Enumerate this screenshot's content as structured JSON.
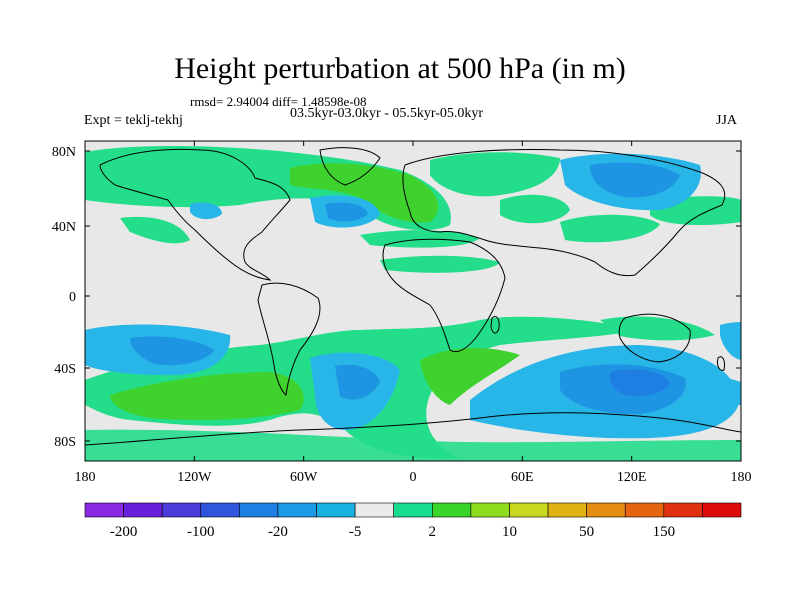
{
  "title": "Height perturbation at 500 hPa (in m)",
  "stats": "rmsd= 2.94004  diff= 1.48598e-08",
  "period": "03.5kyr-03.0kyr - 05.5kyr-05.0kyr",
  "expt": "Expt = teklj-tekhj",
  "season": "JJA",
  "axes": {
    "lat_labels": [
      "80N",
      "40N",
      "0",
      "40S",
      "80S"
    ],
    "lon_labels": [
      "180",
      "120W",
      "60W",
      "0",
      "60E",
      "120E",
      "180"
    ]
  },
  "colorbar": {
    "colors": [
      "#8a2be2",
      "#6a1fd8",
      "#4c3ad9",
      "#2f55dd",
      "#1f7ee2",
      "#1e9ae6",
      "#19b2e0",
      "#eaeaea",
      "#18dd90",
      "#3bd42a",
      "#8fdc1e",
      "#c9d81e",
      "#e0b315",
      "#e58d12",
      "#e5640f",
      "#e03010",
      "#dd0b0b"
    ],
    "labels": [
      "-200",
      "-100",
      "-20",
      "-5",
      "2",
      "10",
      "50",
      "150"
    ]
  },
  "colors": {
    "background": "#e8e8e8",
    "land_border": "#000000",
    "neg_light": "#28b6e8",
    "neg_mid": "#1e95e3",
    "neg_dark": "#1f7ee2",
    "pos_light": "#23dd8a",
    "pos_dark": "#3fd22e"
  }
}
